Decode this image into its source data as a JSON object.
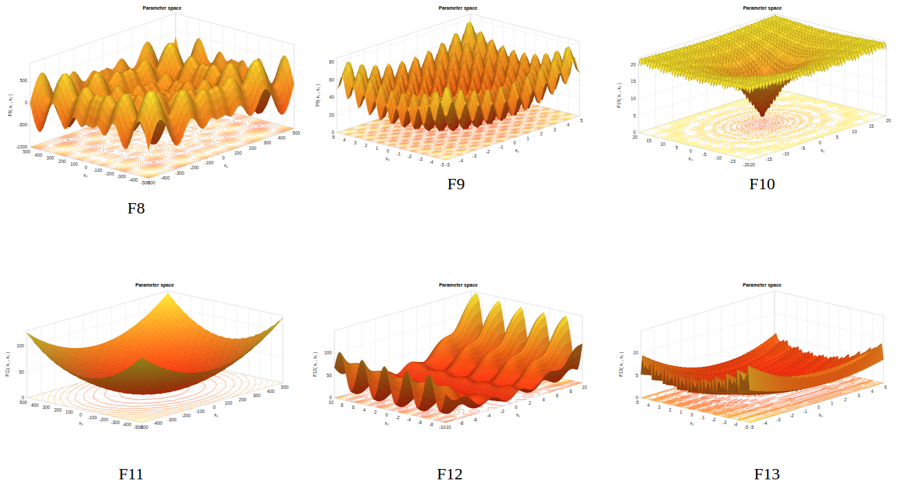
{
  "chart_data": [
    {
      "type": "surface",
      "title": "Parameter space",
      "caption": "F8",
      "xlabel": "x₁",
      "ylabel": "x₂",
      "zlabel": "F8( x₁ , x₂ )",
      "xlim": [
        -500,
        500
      ],
      "ylim": [
        -500,
        500
      ],
      "zlim": [
        -1000,
        900
      ],
      "xticks": [
        -500,
        -400,
        -300,
        -200,
        -100,
        0,
        100,
        200,
        300,
        400,
        500
      ],
      "yticks": [
        -500,
        -400,
        -300,
        -200,
        -100,
        0,
        100,
        200,
        300,
        400,
        500
      ],
      "zticks": [
        -1000,
        -500,
        0,
        500
      ],
      "grid": true
    },
    {
      "type": "surface",
      "title": "Parameter space",
      "caption": "F9",
      "xlabel": "x₁",
      "ylabel": "x₂",
      "zlabel": "F9( x₁ , x₂ )",
      "xlim": [
        -5,
        5
      ],
      "ylim": [
        -5,
        5
      ],
      "zlim": [
        0,
        85
      ],
      "xticks": [
        -5,
        -4,
        -3,
        -2,
        -1,
        0,
        1,
        2,
        3,
        4,
        5
      ],
      "yticks": [
        -5,
        -4,
        -3,
        -2,
        -1,
        0,
        1,
        2,
        3,
        4,
        5
      ],
      "zticks": [
        0,
        20,
        40,
        60,
        80
      ],
      "grid": true
    },
    {
      "type": "surface",
      "title": "Parameter space",
      "caption": "F10",
      "xlabel": "x₁",
      "ylabel": "x₂",
      "zlabel": "F10( x₁ , x₂ )",
      "xlim": [
        -20,
        20
      ],
      "ylim": [
        -20,
        20
      ],
      "zlim": [
        0,
        22
      ],
      "xticks": [
        -20,
        -15,
        -10,
        -5,
        0,
        5,
        10,
        15,
        20
      ],
      "yticks": [
        -20,
        -15,
        -10,
        -5,
        0,
        5,
        10,
        15,
        20
      ],
      "zticks": [
        0,
        5,
        10,
        15,
        20
      ],
      "grid": true
    },
    {
      "type": "surface",
      "title": "Parameter space",
      "caption": "F11",
      "xlabel": "x₁",
      "ylabel": "x₂",
      "zlabel": "F11( x₁ , x₂ )",
      "xlim": [
        -500,
        500
      ],
      "ylim": [
        -500,
        500
      ],
      "zlim": [
        0,
        130
      ],
      "xticks": [
        -500,
        -400,
        -300,
        -200,
        -100,
        0,
        100,
        200,
        300,
        400,
        500
      ],
      "yticks": [
        -500,
        -400,
        -300,
        -200,
        -100,
        0,
        100,
        200,
        300,
        400,
        500
      ],
      "zticks": [
        0,
        50,
        100
      ],
      "grid": true
    },
    {
      "type": "surface",
      "title": "Parameter space",
      "caption": "F12",
      "xlabel": "x₁",
      "ylabel": "x₂",
      "zlabel": "F12( x₁ , x₂ )",
      "xlim": [
        -10,
        10
      ],
      "ylim": [
        -10,
        10
      ],
      "zlim": [
        0,
        150
      ],
      "xticks": [
        -10,
        -8,
        -6,
        -4,
        -2,
        0,
        2,
        4,
        6,
        8,
        10
      ],
      "yticks": [
        -10,
        -8,
        -6,
        -4,
        -2,
        0,
        2,
        4,
        6,
        8,
        10
      ],
      "zticks": [
        0,
        50,
        100
      ],
      "grid": true
    },
    {
      "type": "surface",
      "title": "Parameter space",
      "caption": "F13",
      "xlabel": "x₁",
      "ylabel": "x₂",
      "zlabel": "F13( x₁ , x₂ )",
      "xlim": [
        -5,
        5
      ],
      "ylim": [
        -5,
        5
      ],
      "zlim": [
        0,
        15
      ],
      "xticks": [
        -5,
        -4,
        -3,
        -2,
        -1,
        0,
        1,
        2,
        3,
        4,
        5
      ],
      "yticks": [
        -5,
        -4,
        -3,
        -2,
        -1,
        0,
        1,
        2,
        3,
        4,
        5
      ],
      "zticks": [
        0,
        5,
        10
      ],
      "grid": true
    }
  ]
}
